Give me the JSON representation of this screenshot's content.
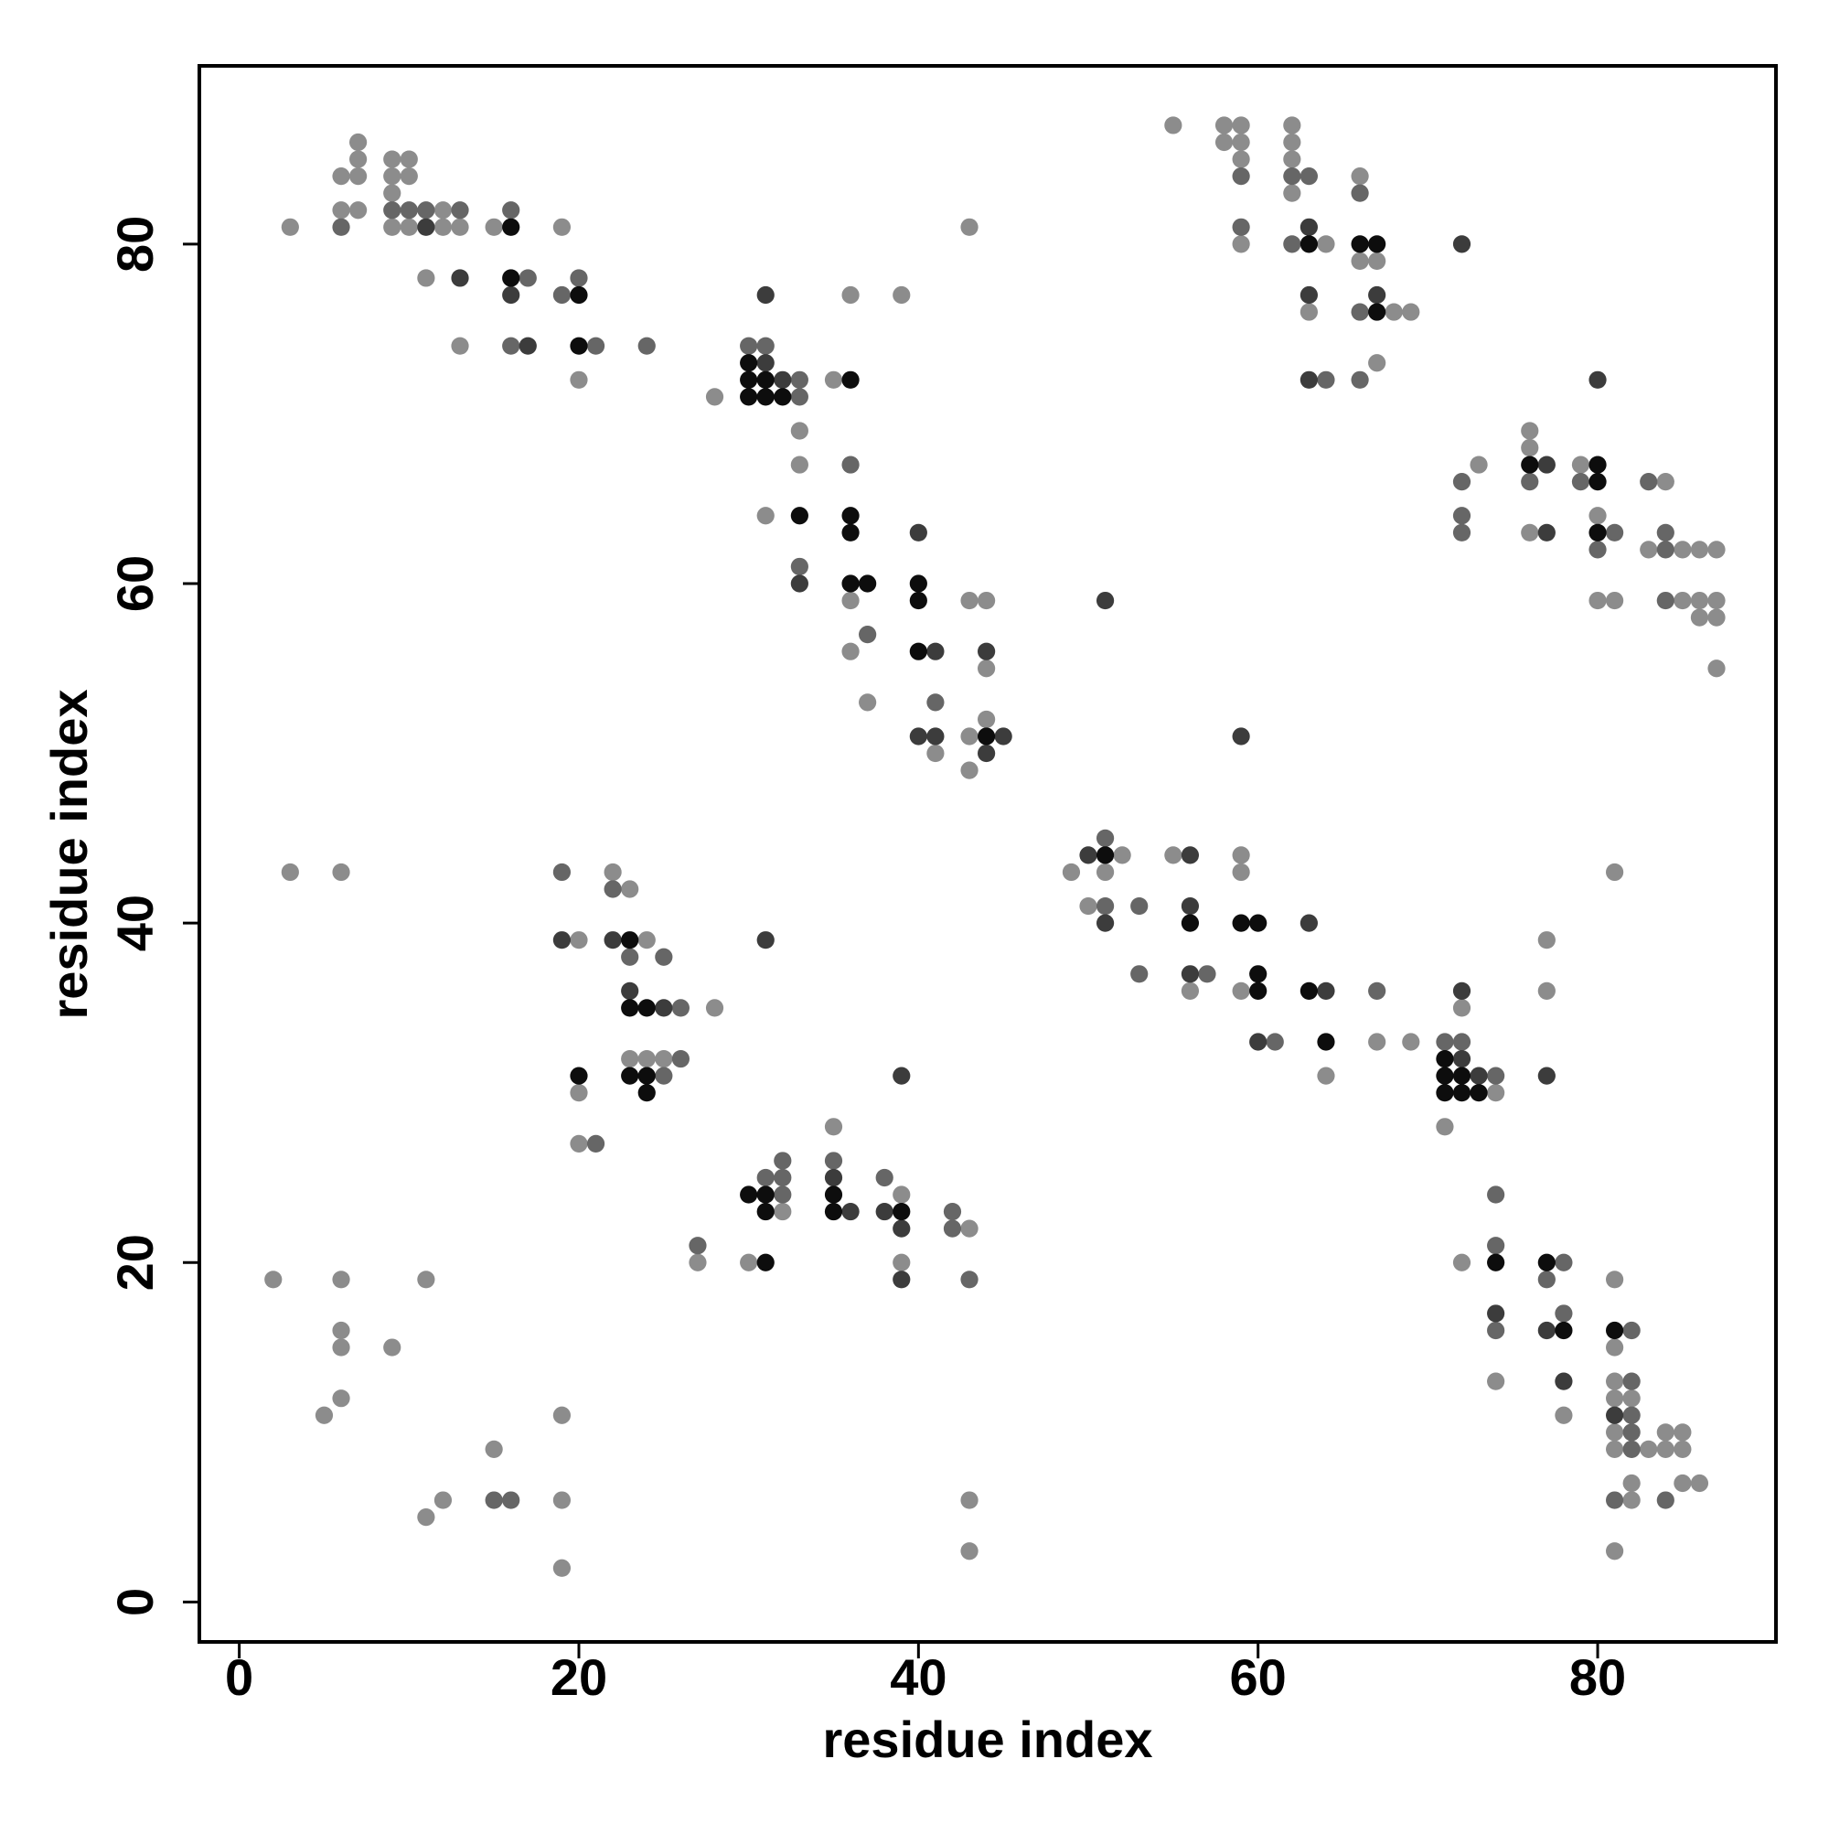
{
  "chart_data": {
    "type": "scatter",
    "xlabel": "residue index",
    "ylabel": "residue index",
    "xlim": [
      -2.35,
      90.5
    ],
    "ylim": [
      -2.35,
      90.5
    ],
    "xticks": [
      0,
      20,
      40,
      60,
      80
    ],
    "yticks": [
      0,
      20,
      40,
      60,
      80
    ],
    "grid": false,
    "series": [
      {
        "color": "#8c8c8c",
        "x": [
          3,
          6,
          6,
          7,
          7,
          7,
          7,
          9,
          10,
          9,
          10,
          9,
          9,
          10,
          12,
          12,
          13,
          15,
          19,
          11,
          13,
          20,
          28,
          35,
          36,
          39,
          33,
          33,
          31,
          36,
          43,
          44,
          36,
          44,
          37,
          44,
          43,
          41,
          43,
          43,
          55,
          58,
          59,
          58,
          59,
          59,
          59,
          62,
          62,
          62,
          62,
          64,
          66,
          66,
          67,
          63,
          68,
          69,
          67,
          73,
          76,
          76,
          76,
          79,
          80,
          84,
          83,
          85,
          86,
          87,
          80,
          81,
          85,
          86,
          87,
          86,
          87,
          87,
          3,
          6,
          22,
          23,
          20,
          24,
          28,
          23,
          24,
          25,
          20,
          20,
          49,
          52,
          51,
          50,
          55,
          56,
          59,
          59,
          59,
          64,
          67,
          69,
          72,
          74,
          71,
          77,
          77,
          81,
          27,
          30,
          32,
          35,
          39,
          39,
          43,
          2,
          6,
          11,
          6,
          6,
          9,
          6,
          5,
          19,
          15,
          12,
          19,
          11,
          19,
          43,
          43,
          72,
          74,
          78,
          81,
          81,
          81,
          81,
          82,
          81,
          81,
          83,
          84,
          85,
          84,
          85,
          82,
          85,
          86,
          82,
          81
        ],
        "y": [
          81,
          82,
          84,
          86,
          85,
          84,
          82,
          85,
          85,
          84,
          84,
          83,
          81,
          81,
          82,
          81,
          81,
          81,
          81,
          78,
          74,
          72,
          71,
          72,
          77,
          77,
          69,
          67,
          64,
          59,
          59,
          59,
          56,
          55,
          53,
          52,
          51,
          50,
          49,
          81,
          87,
          87,
          87,
          86,
          86,
          85,
          80,
          87,
          86,
          85,
          83,
          80,
          84,
          79,
          79,
          76,
          76,
          76,
          73,
          67,
          69,
          68,
          63,
          67,
          64,
          66,
          62,
          62,
          62,
          62,
          59,
          59,
          59,
          59,
          59,
          58,
          58,
          55,
          43,
          43,
          43,
          42,
          39,
          39,
          35,
          32,
          32,
          32,
          30,
          27,
          43,
          44,
          43,
          41,
          44,
          36,
          44,
          43,
          36,
          31,
          33,
          33,
          35,
          30,
          28,
          39,
          36,
          43,
          20,
          20,
          23,
          28,
          24,
          20,
          22,
          19,
          19,
          19,
          16,
          15,
          15,
          12,
          11,
          11,
          9,
          6,
          6,
          5,
          2,
          6,
          3,
          20,
          13,
          11,
          19,
          15,
          13,
          12,
          12,
          10,
          9,
          9,
          10,
          10,
          9,
          9,
          7,
          7,
          7,
          6,
          3
        ]
      },
      {
        "color": "#666666",
        "x": [
          6,
          9,
          10,
          11,
          13,
          16,
          17,
          19,
          20,
          16,
          21,
          24,
          30,
          31,
          33,
          33,
          36,
          33,
          37,
          41,
          59,
          59,
          62,
          63,
          62,
          66,
          66,
          64,
          66,
          72,
          72,
          72,
          76,
          79,
          81,
          80,
          83,
          84,
          84,
          84,
          19,
          22,
          23,
          25,
          26,
          26,
          25,
          21,
          51,
          51,
          53,
          53,
          57,
          61,
          67,
          71,
          72,
          74,
          27,
          31,
          32,
          32,
          32,
          35,
          38,
          42,
          42,
          43,
          15,
          16,
          74,
          74,
          74,
          78,
          77,
          78,
          82,
          82,
          82,
          82,
          82,
          81,
          84
        ],
        "y": [
          81,
          82,
          82,
          82,
          82,
          82,
          78,
          77,
          78,
          74,
          74,
          74,
          74,
          74,
          72,
          71,
          67,
          61,
          57,
          53,
          84,
          81,
          84,
          84,
          80,
          83,
          76,
          72,
          72,
          66,
          64,
          63,
          66,
          66,
          63,
          62,
          66,
          63,
          62,
          59,
          43,
          42,
          38,
          38,
          35,
          32,
          31,
          27,
          45,
          41,
          41,
          37,
          37,
          33,
          36,
          33,
          33,
          31,
          21,
          25,
          25,
          26,
          24,
          26,
          25,
          23,
          22,
          19,
          6,
          6,
          24,
          21,
          16,
          20,
          19,
          17,
          16,
          13,
          11,
          10,
          9,
          6,
          6
        ]
      },
      {
        "color": "#3c3c3c",
        "x": [
          11,
          13,
          16,
          17,
          31,
          32,
          31,
          33,
          40,
          41,
          44,
          40,
          41,
          45,
          44,
          51,
          59,
          63,
          63,
          67,
          72,
          63,
          77,
          77,
          80,
          19,
          22,
          23,
          25,
          31,
          39,
          50,
          51,
          56,
          56,
          56,
          63,
          64,
          60,
          72,
          72,
          73,
          77,
          35,
          36,
          38,
          39,
          39,
          74,
          77,
          78,
          81
        ],
        "y": [
          81,
          78,
          77,
          74,
          73,
          72,
          77,
          60,
          63,
          56,
          56,
          51,
          51,
          51,
          50,
          59,
          51,
          81,
          77,
          77,
          80,
          72,
          67,
          63,
          72,
          39,
          39,
          36,
          35,
          39,
          31,
          44,
          40,
          44,
          41,
          37,
          40,
          36,
          33,
          36,
          32,
          31,
          31,
          25,
          23,
          23,
          22,
          19,
          17,
          16,
          13,
          11
        ]
      },
      {
        "color": "#0d0d0d",
        "x": [
          16,
          16,
          20,
          20,
          30,
          30,
          31,
          30,
          31,
          32,
          36,
          33,
          36,
          36,
          36,
          37,
          40,
          40,
          40,
          44,
          63,
          66,
          67,
          67,
          76,
          80,
          80,
          80,
          23,
          23,
          24,
          23,
          24,
          24,
          20,
          51,
          56,
          59,
          60,
          60,
          60,
          63,
          64,
          71,
          71,
          72,
          71,
          72,
          73,
          31,
          30,
          31,
          31,
          35,
          35,
          39,
          74,
          77,
          78,
          81
        ],
        "y": [
          81,
          78,
          77,
          74,
          73,
          72,
          72,
          71,
          71,
          71,
          72,
          64,
          64,
          63,
          60,
          60,
          60,
          59,
          56,
          51,
          80,
          80,
          80,
          76,
          67,
          67,
          66,
          63,
          39,
          35,
          35,
          31,
          31,
          30,
          31,
          44,
          40,
          40,
          40,
          37,
          36,
          36,
          33,
          32,
          31,
          31,
          30,
          30,
          30,
          20,
          24,
          24,
          23,
          24,
          23,
          23,
          20,
          20,
          16,
          16
        ]
      }
    ]
  }
}
